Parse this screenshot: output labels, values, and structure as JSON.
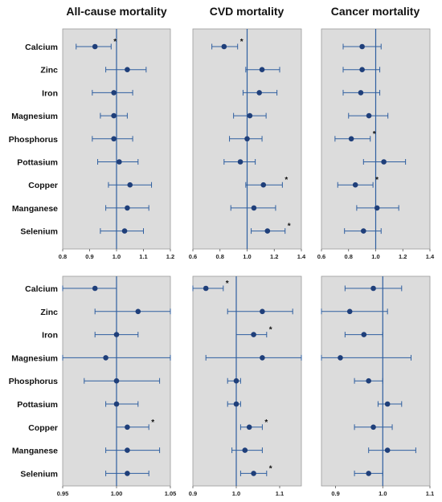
{
  "column_titles": [
    "All-cause mortality",
    "CVD mortality",
    "Cancer mortality"
  ],
  "nutrients": [
    "Calcium",
    "Zinc",
    "Iron",
    "Magnesium",
    "Phosphorus",
    "Pottasium",
    "Copper",
    "Manganese",
    "Selenium"
  ],
  "colors": {
    "panel_bg": "#dcdcdc",
    "point": "#1f3f7a",
    "line": "#2f5fa0",
    "ref_line": "#2f5fa0"
  },
  "chart_data": [
    {
      "type": "scatter",
      "row": 1,
      "column": "All-cause mortality",
      "xticks": [
        0.8,
        0.9,
        1.0,
        1.1,
        1.2
      ],
      "xlim": [
        0.8,
        1.2
      ],
      "reference_x": 1.0,
      "categories": [
        "Calcium",
        "Zinc",
        "Iron",
        "Magnesium",
        "Phosphorus",
        "Pottasium",
        "Copper",
        "Manganese",
        "Selenium"
      ],
      "estimate": [
        0.92,
        1.04,
        0.99,
        0.99,
        0.99,
        1.01,
        1.05,
        1.04,
        1.03
      ],
      "lower": [
        0.85,
        0.96,
        0.91,
        0.94,
        0.91,
        0.93,
        0.97,
        0.96,
        0.94
      ],
      "upper": [
        0.98,
        1.11,
        1.06,
        1.04,
        1.06,
        1.08,
        1.13,
        1.12,
        1.1
      ],
      "significant": [
        true,
        false,
        false,
        false,
        false,
        false,
        false,
        false,
        false
      ]
    },
    {
      "type": "scatter",
      "row": 1,
      "column": "CVD mortality",
      "xticks": [
        0.6,
        0.8,
        1.0,
        1.2,
        1.4
      ],
      "xlim": [
        0.6,
        1.4
      ],
      "reference_x": 1.0,
      "categories": [
        "Calcium",
        "Zinc",
        "Iron",
        "Magnesium",
        "Phosphorus",
        "Pottasium",
        "Copper",
        "Manganese",
        "Selenium"
      ],
      "estimate": [
        0.83,
        1.11,
        1.09,
        1.02,
        1.0,
        0.95,
        1.12,
        1.05,
        1.15
      ],
      "lower": [
        0.74,
        0.99,
        0.97,
        0.9,
        0.87,
        0.83,
        0.99,
        0.88,
        1.03
      ],
      "upper": [
        0.93,
        1.24,
        1.22,
        1.14,
        1.11,
        1.06,
        1.26,
        1.21,
        1.28
      ],
      "significant": [
        true,
        false,
        false,
        false,
        false,
        false,
        true,
        false,
        true
      ]
    },
    {
      "type": "scatter",
      "row": 1,
      "column": "Cancer mortality",
      "xticks": [
        0.6,
        0.8,
        1.0,
        1.2,
        1.4
      ],
      "xlim": [
        0.6,
        1.4
      ],
      "reference_x": 1.0,
      "categories": [
        "Calcium",
        "Zinc",
        "Iron",
        "Magnesium",
        "Phosphorus",
        "Pottasium",
        "Copper",
        "Manganese",
        "Selenium"
      ],
      "estimate": [
        0.9,
        0.9,
        0.89,
        0.95,
        0.82,
        1.06,
        0.85,
        1.01,
        0.91
      ],
      "lower": [
        0.76,
        0.76,
        0.76,
        0.8,
        0.7,
        0.91,
        0.72,
        0.86,
        0.77
      ],
      "upper": [
        1.04,
        1.03,
        1.03,
        1.09,
        0.96,
        1.22,
        0.98,
        1.17,
        1.04
      ],
      "significant": [
        false,
        false,
        false,
        false,
        true,
        false,
        true,
        false,
        false
      ]
    },
    {
      "type": "scatter",
      "row": 2,
      "column": "All-cause mortality",
      "xticks": [
        0.95,
        1.0,
        1.05
      ],
      "xlim": [
        0.95,
        1.05
      ],
      "reference_x": 1.0,
      "categories": [
        "Calcium",
        "Zinc",
        "Iron",
        "Magnesium",
        "Phosphorus",
        "Pottasium",
        "Copper",
        "Manganese",
        "Selenium"
      ],
      "estimate": [
        0.98,
        1.02,
        1.0,
        0.99,
        1.0,
        1.0,
        1.01,
        1.01,
        1.01
      ],
      "lower": [
        0.95,
        0.98,
        0.98,
        0.95,
        0.97,
        0.99,
        1.0,
        0.99,
        0.99
      ],
      "upper": [
        1.0,
        1.05,
        1.02,
        1.05,
        1.04,
        1.02,
        1.03,
        1.04,
        1.03
      ],
      "significant": [
        false,
        false,
        false,
        false,
        false,
        false,
        true,
        false,
        false
      ]
    },
    {
      "type": "scatter",
      "row": 2,
      "column": "CVD mortality",
      "xticks": [
        0.9,
        1.0,
        1.1
      ],
      "xlim": [
        0.9,
        1.15
      ],
      "reference_x": 1.0,
      "categories": [
        "Calcium",
        "Zinc",
        "Iron",
        "Magnesium",
        "Phosphorus",
        "Pottasium",
        "Copper",
        "Manganese",
        "Selenium"
      ],
      "estimate": [
        0.93,
        1.06,
        1.04,
        1.06,
        1.0,
        1.0,
        1.03,
        1.02,
        1.04
      ],
      "lower": [
        0.9,
        0.98,
        1.0,
        0.93,
        0.98,
        0.98,
        1.01,
        0.99,
        1.01
      ],
      "upper": [
        0.97,
        1.13,
        1.07,
        1.15,
        1.01,
        1.01,
        1.06,
        1.06,
        1.07
      ],
      "significant": [
        true,
        false,
        true,
        false,
        false,
        false,
        true,
        false,
        true
      ]
    },
    {
      "type": "scatter",
      "row": 2,
      "column": "Cancer mortality",
      "xticks": [
        0.9,
        1.0,
        1.1
      ],
      "xlim": [
        0.87,
        1.1
      ],
      "reference_x": 1.0,
      "categories": [
        "Calcium",
        "Zinc",
        "Iron",
        "Magnesium",
        "Phosphorus",
        "Pottasium",
        "Copper",
        "Manganese",
        "Selenium"
      ],
      "estimate": [
        0.98,
        0.93,
        0.96,
        0.91,
        0.97,
        1.01,
        0.98,
        1.01,
        0.97
      ],
      "lower": [
        0.92,
        0.87,
        0.92,
        0.87,
        0.94,
        0.99,
        0.94,
        0.97,
        0.94
      ],
      "upper": [
        1.04,
        1.01,
        1.0,
        1.06,
        1.0,
        1.04,
        1.02,
        1.07,
        1.0
      ],
      "significant": [
        false,
        false,
        false,
        false,
        false,
        false,
        false,
        false,
        false
      ]
    }
  ]
}
